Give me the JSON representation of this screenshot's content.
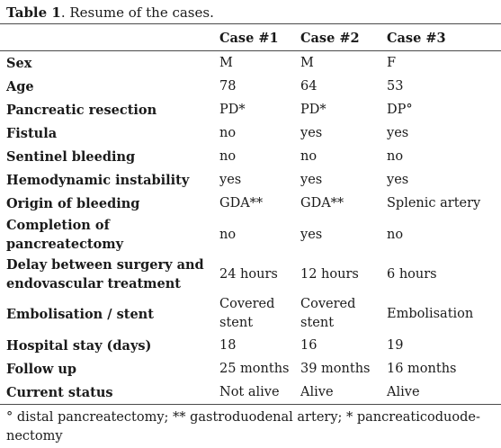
{
  "caption": {
    "prefix": "Table 1",
    "text": ". Resume of the cases."
  },
  "table": {
    "headers": [
      "",
      "Case #1",
      "Case #2",
      "Case #3"
    ],
    "rows": [
      {
        "label": "Sex",
        "values": [
          "M",
          "M",
          "F"
        ]
      },
      {
        "label": "Age",
        "values": [
          "78",
          "64",
          "53"
        ]
      },
      {
        "label": "Pancreatic resection",
        "values": [
          "PD*",
          "PD*",
          "DP°"
        ]
      },
      {
        "label": "Fistula",
        "values": [
          "no",
          "yes",
          "yes"
        ]
      },
      {
        "label": "Sentinel bleeding",
        "values": [
          "no",
          "no",
          "no"
        ]
      },
      {
        "label": "Hemodynamic instability",
        "values": [
          "yes",
          "yes",
          "yes"
        ]
      },
      {
        "label": "Origin of bleeding",
        "values": [
          "GDA**",
          "GDA**",
          "Splenic artery"
        ]
      },
      {
        "label": "Completion of pancreatectomy",
        "values": [
          "no",
          "yes",
          "no"
        ]
      },
      {
        "label": "Delay between surgery and endovascular treatment",
        "values": [
          "24 hours",
          "12 hours",
          "6 hours"
        ]
      },
      {
        "label": "Embolisation / stent",
        "values": [
          "Covered stent",
          "Covered stent",
          "Embolisation"
        ]
      },
      {
        "label": "Hospital stay (days)",
        "values": [
          "18",
          "16",
          "19"
        ]
      },
      {
        "label": "Follow up",
        "values": [
          "25 months",
          "39 months",
          "16 months"
        ]
      },
      {
        "label": "Current status",
        "values": [
          "Not alive",
          "Alive",
          "Alive"
        ]
      }
    ]
  },
  "footnote": "° distal pancreatectomy; ** gastroduodenal artery; * pancreaticoduode-nectomy"
}
